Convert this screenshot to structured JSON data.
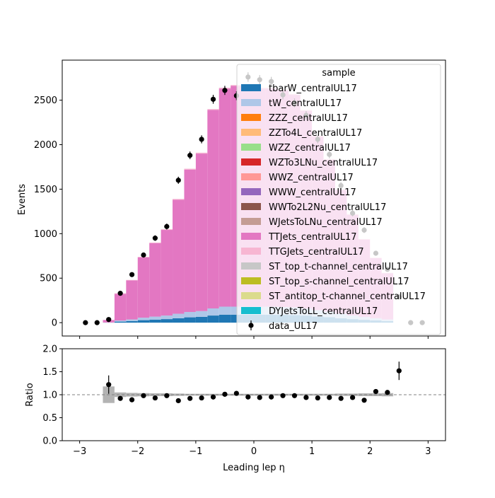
{
  "chart_data": [
    {
      "type": "bar",
      "stacked": true,
      "xlabel": "",
      "ylabel": "Events",
      "xlim": [
        -3.3,
        3.3
      ],
      "ylim": [
        -150,
        2950
      ],
      "yticks": [
        0,
        500,
        1000,
        1500,
        2000,
        2500
      ],
      "ytick_labels": [
        "0",
        "500",
        "1000",
        "1500",
        "2000",
        "2500"
      ],
      "bin_edges": [
        -2.6,
        -2.4,
        -2.2,
        -2.0,
        -1.8,
        -1.6,
        -1.4,
        -1.2,
        -1.0,
        -0.8,
        -0.6,
        -0.4,
        -0.2,
        0.0,
        0.2,
        0.4,
        0.6,
        0.8,
        1.0,
        1.2,
        1.4,
        1.6,
        1.8,
        2.0,
        2.2,
        2.4
      ],
      "mc_total": [
        30,
        330,
        480,
        740,
        900,
        1050,
        1390,
        1730,
        1910,
        2400,
        2640,
        2670,
        2670,
        2640,
        2640,
        2620,
        2570,
        2390,
        2100,
        1840,
        1500,
        1220,
        940,
        730,
        560
      ],
      "series": [
        {
          "name": "tbarW_centralUL17",
          "color": "#1f77b4",
          "values": [
            1,
            12,
            18,
            28,
            34,
            40,
            50,
            60,
            65,
            80,
            90,
            90,
            90,
            90,
            90,
            88,
            86,
            80,
            70,
            62,
            50,
            40,
            32,
            25,
            18
          ]
        },
        {
          "name": "tW_centralUL17",
          "color": "#aec7e8",
          "values": [
            1,
            12,
            18,
            28,
            34,
            40,
            50,
            60,
            65,
            80,
            90,
            90,
            90,
            90,
            90,
            88,
            86,
            80,
            70,
            62,
            50,
            40,
            32,
            25,
            18
          ]
        },
        {
          "name": "ZZZ_centralUL17",
          "color": "#ff7f0e",
          "values": [
            0,
            0,
            0,
            0,
            0,
            0,
            0,
            0,
            0,
            0,
            0,
            0,
            0,
            0,
            0,
            0,
            0,
            0,
            0,
            0,
            0,
            0,
            0,
            0,
            0
          ]
        },
        {
          "name": "ZZTo4L_centralUL17",
          "color": "#ffbb78",
          "values": [
            0,
            0,
            0,
            0,
            0,
            0,
            0,
            0,
            0,
            0,
            0,
            0,
            0,
            0,
            0,
            0,
            0,
            0,
            0,
            0,
            0,
            0,
            0,
            0,
            0
          ]
        },
        {
          "name": "WZZ_centralUL17",
          "color": "#98df8a",
          "values": [
            0,
            0,
            0,
            0,
            0,
            0,
            0,
            0,
            0,
            0,
            0,
            0,
            0,
            0,
            0,
            0,
            0,
            0,
            0,
            0,
            0,
            0,
            0,
            0,
            0
          ]
        },
        {
          "name": "WZTo3LNu_centralUL17",
          "color": "#d62728",
          "values": [
            0,
            0,
            0,
            0,
            0,
            0,
            0,
            0,
            0,
            0,
            0,
            0,
            0,
            0,
            0,
            0,
            0,
            0,
            0,
            0,
            0,
            0,
            0,
            0,
            0
          ]
        },
        {
          "name": "WWZ_centralUL17",
          "color": "#ff9896",
          "values": [
            0,
            0,
            0,
            0,
            0,
            0,
            0,
            0,
            0,
            0,
            0,
            0,
            0,
            0,
            0,
            0,
            0,
            0,
            0,
            0,
            0,
            0,
            0,
            0,
            0
          ]
        },
        {
          "name": "WWW_centralUL17",
          "color": "#9467bd",
          "values": [
            0,
            0,
            0,
            0,
            0,
            0,
            0,
            0,
            0,
            0,
            0,
            0,
            0,
            0,
            0,
            0,
            0,
            0,
            0,
            0,
            0,
            0,
            0,
            0,
            0
          ]
        },
        {
          "name": "WWTo2L2Nu_centralUL17",
          "color": "#8c564b",
          "values": [
            0,
            0,
            0,
            0,
            0,
            0,
            0,
            0,
            0,
            0,
            0,
            0,
            0,
            0,
            0,
            0,
            0,
            0,
            0,
            0,
            0,
            0,
            0,
            0,
            0
          ]
        },
        {
          "name": "WJetsToLNu_centralUL17",
          "color": "#c49c94",
          "values": [
            0,
            0,
            0,
            0,
            0,
            0,
            0,
            0,
            0,
            0,
            0,
            0,
            0,
            0,
            0,
            0,
            0,
            0,
            0,
            0,
            0,
            0,
            0,
            0,
            0
          ]
        },
        {
          "name": "TTJets_centralUL17",
          "color": "#e377c2",
          "values": [
            28,
            300,
            440,
            678,
            826,
            962,
            1280,
            1600,
            1770,
            2230,
            2450,
            2480,
            2480,
            2450,
            2450,
            2434,
            2388,
            2220,
            1950,
            1706,
            1390,
            1132,
            870,
            676,
            520
          ]
        },
        {
          "name": "TTGJets_centralUL17",
          "color": "#f7b6d2",
          "values": [
            0,
            6,
            4,
            6,
            6,
            8,
            10,
            10,
            10,
            10,
            10,
            10,
            10,
            10,
            10,
            10,
            10,
            10,
            10,
            10,
            10,
            8,
            6,
            4,
            4
          ]
        },
        {
          "name": "ST_top_t-channel_centralUL17",
          "color": "#c7c7c7",
          "values": [
            0,
            0,
            0,
            0,
            0,
            0,
            0,
            0,
            0,
            0,
            0,
            0,
            0,
            0,
            0,
            0,
            0,
            0,
            0,
            0,
            0,
            0,
            0,
            0,
            0
          ]
        },
        {
          "name": "ST_top_s-channel_centralUL17",
          "color": "#bcbd22",
          "values": [
            0,
            0,
            0,
            0,
            0,
            0,
            0,
            0,
            0,
            0,
            0,
            0,
            0,
            0,
            0,
            0,
            0,
            0,
            0,
            0,
            0,
            0,
            0,
            0,
            0
          ]
        },
        {
          "name": "ST_antitop_t-channel_centralUL17",
          "color": "#dbdb8d",
          "values": [
            0,
            0,
            0,
            0,
            0,
            0,
            0,
            0,
            0,
            0,
            0,
            0,
            0,
            0,
            0,
            0,
            0,
            0,
            0,
            0,
            0,
            0,
            0,
            0,
            0
          ]
        },
        {
          "name": "DYJetsToLL_centralUL17",
          "color": "#17becf",
          "values": [
            0,
            0,
            0,
            0,
            0,
            0,
            0,
            0,
            0,
            0,
            0,
            0,
            0,
            0,
            0,
            0,
            0,
            0,
            0,
            0,
            0,
            0,
            0,
            0,
            0
          ]
        }
      ],
      "data_series": {
        "name": "data_UL17",
        "x": [
          -2.9,
          -2.7,
          -2.5,
          -2.3,
          -2.1,
          -1.9,
          -1.7,
          -1.5,
          -1.3,
          -1.1,
          -0.9,
          -0.7,
          -0.5,
          -0.3,
          -0.1,
          0.1,
          0.3,
          0.5,
          0.7,
          0.9,
          1.1,
          1.3,
          1.5,
          1.7,
          1.9,
          2.1,
          2.3,
          2.5,
          2.7,
          2.9
        ],
        "y": [
          0,
          0,
          35,
          330,
          540,
          760,
          950,
          1080,
          1600,
          1880,
          2060,
          2510,
          2610,
          2550,
          2760,
          2730,
          2710,
          2560,
          2470,
          2330,
          2060,
          1890,
          1540,
          1230,
          1040,
          780,
          600,
          290,
          0,
          0
        ],
        "err": [
          0,
          0,
          6,
          18,
          23,
          28,
          31,
          33,
          40,
          43,
          45,
          50,
          51,
          50,
          53,
          52,
          52,
          51,
          50,
          48,
          45,
          43,
          39,
          35,
          32,
          28,
          24,
          17,
          0,
          0
        ]
      },
      "legend": {
        "title": "sample",
        "placement": "top-right"
      }
    },
    {
      "type": "scatter",
      "xlabel": "Leading lep η",
      "ylabel": "Ratio",
      "xlim": [
        -3.3,
        3.3
      ],
      "ylim": [
        0.0,
        2.0
      ],
      "xticks": [
        -3,
        -2,
        -1,
        0,
        1,
        2,
        3
      ],
      "xtick_labels": [
        "−3",
        "−2",
        "−1",
        "0",
        "1",
        "2",
        "3"
      ],
      "yticks": [
        0.0,
        0.5,
        1.0,
        1.5,
        2.0
      ],
      "ytick_labels": [
        "0.0",
        "0.5",
        "1.0",
        "1.5",
        "2.0"
      ],
      "reference_line": 1.0,
      "uncertainty_band": {
        "bin_edges": [
          -2.6,
          -2.4,
          -2.2,
          -2.0,
          -1.8,
          -1.6,
          -1.4,
          -1.2,
          -1.0,
          -0.8,
          -0.6,
          -0.4,
          -0.2,
          0.0,
          0.2,
          0.4,
          0.6,
          0.8,
          1.0,
          1.2,
          1.4,
          1.6,
          1.8,
          2.0,
          2.2,
          2.4
        ],
        "half_width": [
          0.18,
          0.05,
          0.04,
          0.035,
          0.03,
          0.03,
          0.025,
          0.02,
          0.02,
          0.02,
          0.02,
          0.02,
          0.02,
          0.02,
          0.02,
          0.02,
          0.02,
          0.02,
          0.02,
          0.02,
          0.025,
          0.025,
          0.03,
          0.03,
          0.035
        ]
      },
      "points": {
        "x": [
          -2.5,
          -2.3,
          -2.1,
          -1.9,
          -1.7,
          -1.5,
          -1.3,
          -1.1,
          -0.9,
          -0.7,
          -0.5,
          -0.3,
          -0.1,
          0.1,
          0.3,
          0.5,
          0.7,
          0.9,
          1.1,
          1.3,
          1.5,
          1.7,
          1.9,
          2.1,
          2.3,
          2.5
        ],
        "y": [
          1.22,
          0.92,
          0.89,
          0.98,
          0.93,
          0.98,
          0.87,
          0.92,
          0.93,
          0.95,
          1.01,
          1.03,
          0.95,
          0.94,
          0.95,
          0.98,
          0.98,
          0.94,
          0.93,
          0.94,
          0.92,
          0.94,
          0.88,
          1.07,
          1.05,
          1.52
        ],
        "err": [
          0.2,
          0.05,
          0.04,
          0.035,
          0.03,
          0.03,
          0.025,
          0.022,
          0.02,
          0.02,
          0.02,
          0.02,
          0.02,
          0.02,
          0.02,
          0.02,
          0.02,
          0.02,
          0.02,
          0.022,
          0.025,
          0.028,
          0.03,
          0.04,
          0.05,
          0.2
        ]
      }
    }
  ]
}
